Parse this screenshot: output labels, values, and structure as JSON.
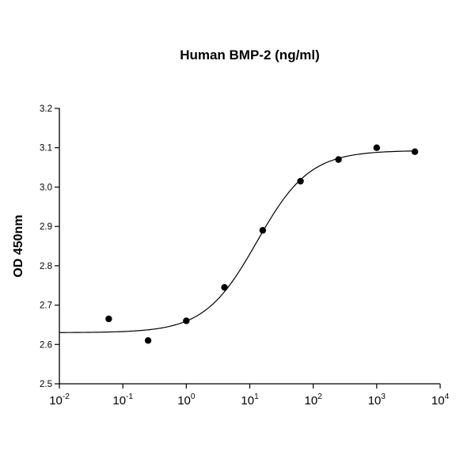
{
  "chart": {
    "title": "Human BMP-2 (ng/ml)",
    "ylabel": "OD 450nm"
  },
  "chart_data": {
    "type": "scatter",
    "title": "Human BMP-2 (ng/ml)",
    "xlabel": "Human BMP-2 (ng/ml)",
    "ylabel": "OD 450nm",
    "x_scale": "log",
    "xlim": [
      0.01,
      10000
    ],
    "ylim": [
      2.5,
      3.2
    ],
    "x_ticks": [
      0.01,
      0.1,
      1,
      10,
      100,
      1000,
      10000
    ],
    "x_tick_labels": [
      "10^-2",
      "10^-1",
      "10^0",
      "10^1",
      "10^2",
      "10^3",
      "10^4"
    ],
    "y_ticks": [
      2.5,
      2.6,
      2.7,
      2.8,
      2.9,
      3.0,
      3.1,
      3.2
    ],
    "grid": false,
    "legend_position": "none",
    "marker_color": "#000000",
    "line_color": "#000000",
    "points": [
      [
        0.06,
        2.665
      ],
      [
        0.25,
        2.61
      ],
      [
        1,
        2.66
      ],
      [
        4,
        2.745
      ],
      [
        16,
        2.89
      ],
      [
        63,
        3.015
      ],
      [
        250,
        3.07
      ],
      [
        1000,
        3.1
      ],
      [
        4000,
        3.09
      ]
    ],
    "fit_curve": {
      "model": "4PL",
      "bottom": 2.63,
      "top": 3.093,
      "ec50": 13,
      "hill": 1.05
    },
    "curve_range": [
      0.01,
      4200
    ]
  }
}
